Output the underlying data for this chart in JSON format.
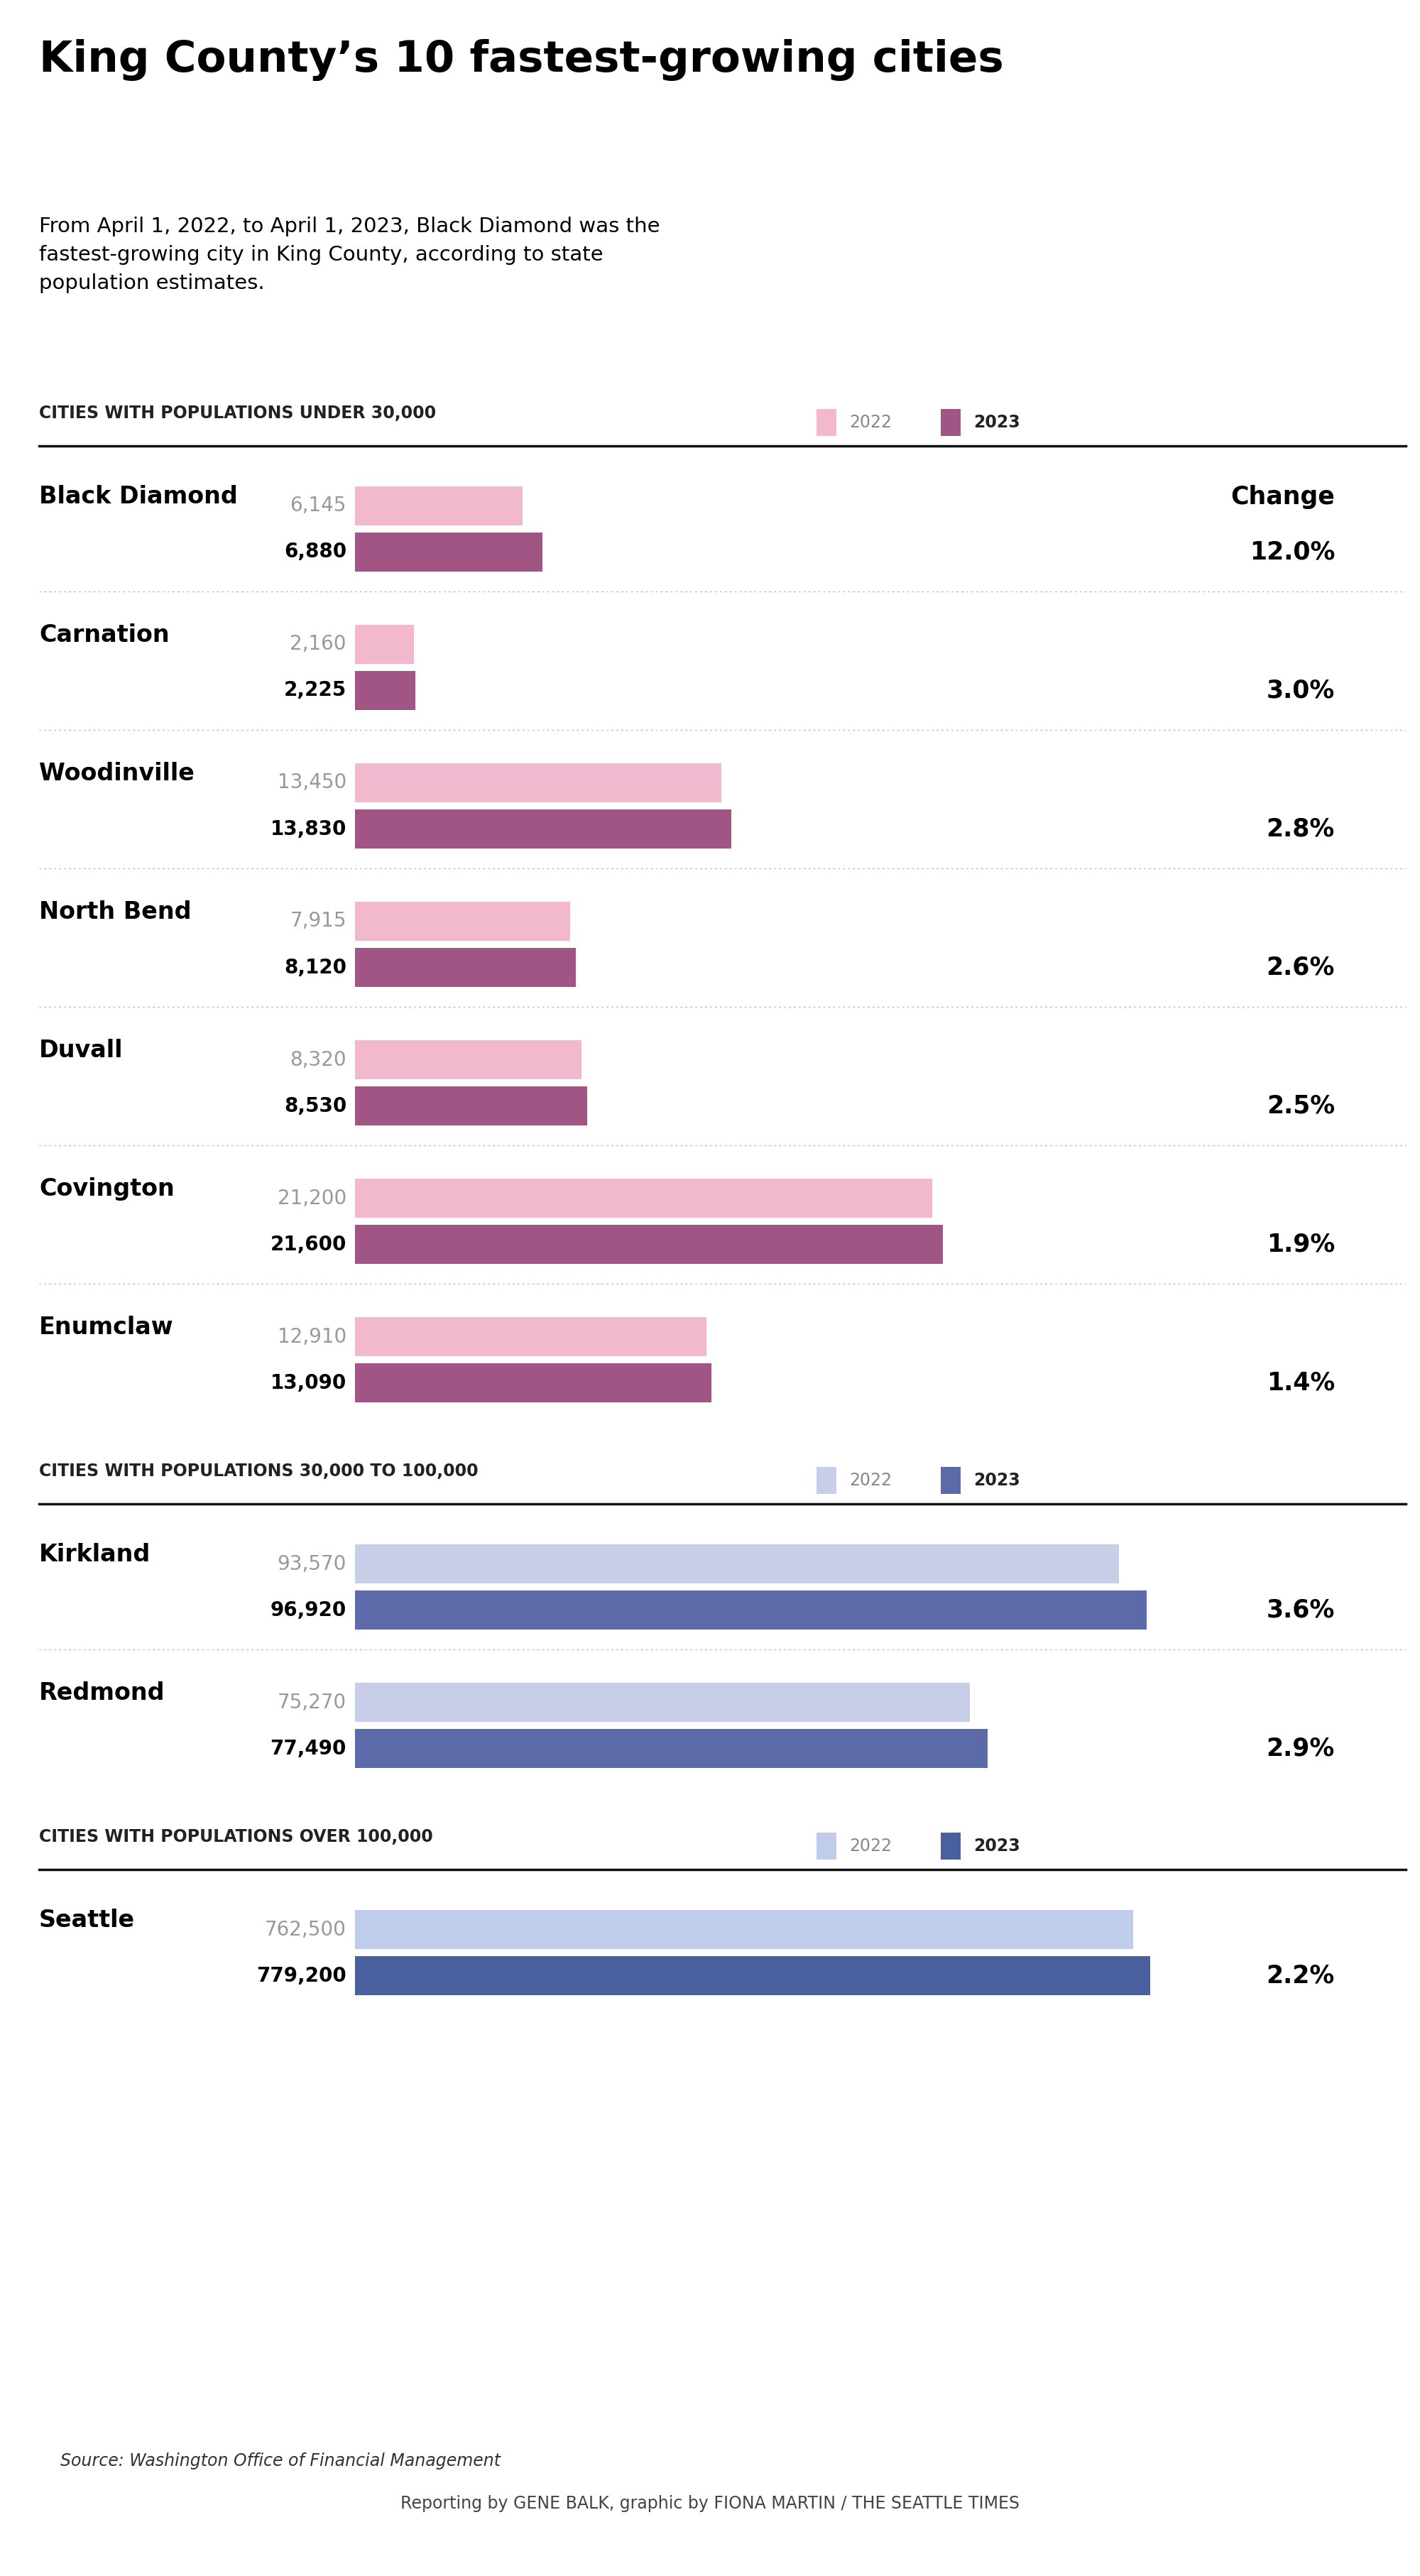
{
  "title": "King County’s 10 fastest-growing cities",
  "subtitle": "From April 1, 2022, to April 1, 2023, Black Diamond was the\nfastest-growing city in King County, according to state\npopulation estimates.",
  "sections": [
    {
      "header": "CITIES WITH POPULATIONS UNDER 30,000",
      "color_2022": "#f2b8ce",
      "color_2023": "#a05585",
      "cities": [
        {
          "name": "Black Diamond",
          "val2022": 6145,
          "val2023": 6880,
          "change": "12.0%"
        },
        {
          "name": "Carnation",
          "val2022": 2160,
          "val2023": 2225,
          "change": "3.0%"
        },
        {
          "name": "Woodinville",
          "val2022": 13450,
          "val2023": 13830,
          "change": "2.8%"
        },
        {
          "name": "North Bend",
          "val2022": 7915,
          "val2023": 8120,
          "change": "2.6%"
        },
        {
          "name": "Duvall",
          "val2022": 8320,
          "val2023": 8530,
          "change": "2.5%"
        },
        {
          "name": "Covington",
          "val2022": 21200,
          "val2023": 21600,
          "change": "1.9%"
        },
        {
          "name": "Enumclaw",
          "val2022": 12910,
          "val2023": 13090,
          "change": "1.4%"
        }
      ],
      "max_val": 30000
    },
    {
      "header": "CITIES WITH POPULATIONS 30,000 TO 100,000",
      "color_2022": "#c8cee8",
      "color_2023": "#5d6aaa",
      "cities": [
        {
          "name": "Kirkland",
          "val2022": 93570,
          "val2023": 96920,
          "change": "3.6%"
        },
        {
          "name": "Redmond",
          "val2022": 75270,
          "val2023": 77490,
          "change": "2.9%"
        }
      ],
      "max_val": 100000
    },
    {
      "header": "CITIES WITH POPULATIONS OVER 100,000",
      "color_2022": "#c0cdea",
      "color_2023": "#4a5f9e",
      "cities": [
        {
          "name": "Seattle",
          "val2022": 762500,
          "val2023": 779200,
          "change": "2.2%"
        }
      ],
      "max_val": 800000
    }
  ],
  "source": "Source: Washington Office of Financial Management",
  "credit_regular": "Reporting by ",
  "credit_bold1": "GENE BALK",
  "credit_mid": ", graphic by ",
  "credit_bold2": "FIONA MARTIN",
  "credit_end": " / ",
  "credit_bold3": "THE SEATTLE TIMES",
  "bg_color": "#ffffff"
}
